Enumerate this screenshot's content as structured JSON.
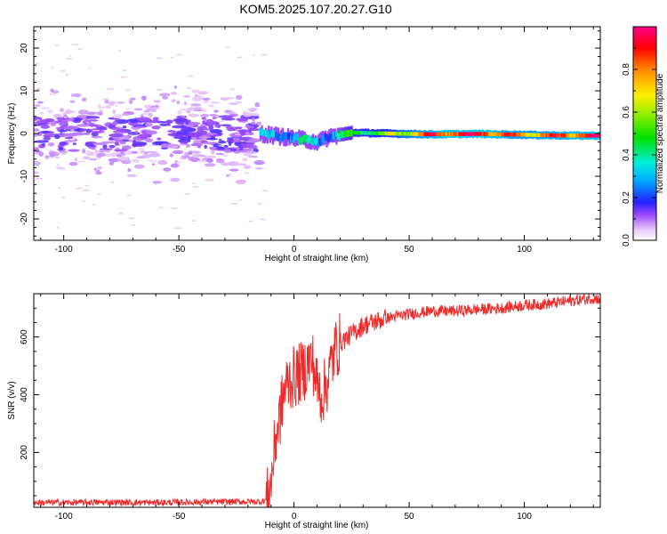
{
  "title": "KOM5.2025.107.20.27.G10",
  "chart_data": [
    {
      "type": "heatmap",
      "xlabel": "Height of straight line (km)",
      "ylabel": "Frequency (Hz)",
      "xlim": [
        -113,
        133
      ],
      "ylim": [
        -25,
        25
      ],
      "xticks": [
        -100,
        -50,
        0,
        50,
        100
      ],
      "yticks": [
        -20,
        -10,
        0,
        10,
        20
      ],
      "colorbar": {
        "label": "Normalized spectral amplitude",
        "range": [
          0,
          1
        ],
        "ticks": [
          0.0,
          0.2,
          0.4,
          0.6,
          0.8
        ],
        "tick_labels": [
          "0.0",
          "0.2",
          "0.4",
          "0.6",
          "0.8"
        ]
      },
      "noise_region": {
        "x_range": [
          -113,
          -15
        ],
        "freq_spread_hz": 12,
        "amplitude": 0.1
      },
      "signal_track": [
        {
          "x": -15,
          "freq": 0.0,
          "amp": 0.25
        },
        {
          "x": -5,
          "freq": -0.8,
          "amp": 0.3
        },
        {
          "x": 5,
          "freq": -1.5,
          "amp": 0.35
        },
        {
          "x": 10,
          "freq": -2.0,
          "amp": 0.3
        },
        {
          "x": 15,
          "freq": -0.8,
          "amp": 0.3
        },
        {
          "x": 25,
          "freq": 0.2,
          "amp": 0.45
        },
        {
          "x": 40,
          "freq": 0.0,
          "amp": 0.55
        },
        {
          "x": 60,
          "freq": -0.2,
          "amp": 0.85
        },
        {
          "x": 80,
          "freq": -0.1,
          "amp": 0.92
        },
        {
          "x": 100,
          "freq": -0.3,
          "amp": 0.75
        },
        {
          "x": 120,
          "freq": -0.5,
          "amp": 0.85
        },
        {
          "x": 133,
          "freq": -0.5,
          "amp": 0.9
        }
      ]
    },
    {
      "type": "line",
      "xlabel": "Height of straight line (km)",
      "ylabel": "SNR (v/v)",
      "xlim": [
        -113,
        133
      ],
      "ylim": [
        10,
        750
      ],
      "xticks": [
        -100,
        -50,
        0,
        50,
        100
      ],
      "yticks": [
        200,
        400,
        600
      ],
      "series": [
        {
          "color": "#ee2b2b",
          "x": [
            -113,
            -100,
            -80,
            -60,
            -40,
            -20,
            -15,
            -12,
            -10,
            -8,
            -6,
            -4,
            -2,
            0,
            2,
            4,
            6,
            8,
            10,
            12,
            14,
            16,
            18,
            20,
            25,
            30,
            40,
            50,
            60,
            70,
            80,
            90,
            100,
            110,
            120,
            130,
            133
          ],
          "y": [
            22,
            22,
            23,
            22,
            24,
            25,
            25,
            30,
            90,
            250,
            330,
            420,
            450,
            460,
            470,
            480,
            510,
            520,
            430,
            400,
            430,
            500,
            560,
            580,
            610,
            640,
            665,
            680,
            690,
            690,
            695,
            700,
            710,
            715,
            725,
            735,
            730
          ]
        }
      ]
    }
  ]
}
